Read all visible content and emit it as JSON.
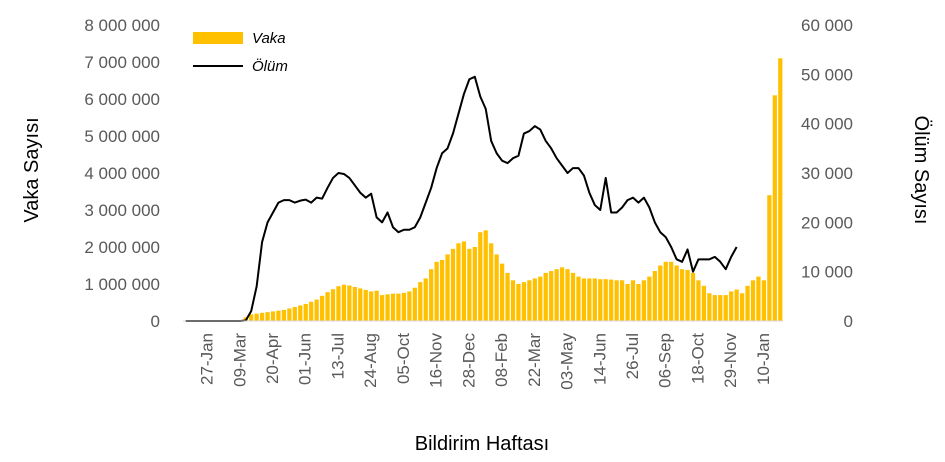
{
  "chart_data": {
    "type": "bar",
    "xlabel": "Bildirim Haftası",
    "ylabel": "Vaka Sayısı",
    "y2label": "Ölüm Sayısı",
    "ylim": [
      0,
      8000000
    ],
    "y2lim": [
      0,
      60000
    ],
    "yticks": [
      "0",
      "1 000 000",
      "2 000 000",
      "3 000 000",
      "4 000 000",
      "5 000 000",
      "6 000 000",
      "7 000 000",
      "8 000 000"
    ],
    "y2ticks": [
      "0",
      "10 000",
      "20 000",
      "30 000",
      "40 000",
      "50 000",
      "60 000"
    ],
    "xticks": [
      {
        "label": "27-Jan",
        "week": 4
      },
      {
        "label": "09-Mar",
        "week": 10
      },
      {
        "label": "20-Apr",
        "week": 16
      },
      {
        "label": "01-Jun",
        "week": 22
      },
      {
        "label": "13-Jul",
        "week": 28
      },
      {
        "label": "24-Aug",
        "week": 34
      },
      {
        "label": "05-Oct",
        "week": 40
      },
      {
        "label": "16-Nov",
        "week": 46
      },
      {
        "label": "28-Dec",
        "week": 52
      },
      {
        "label": "08-Feb",
        "week": 58
      },
      {
        "label": "22-Mar",
        "week": 64
      },
      {
        "label": "03-May",
        "week": 70
      },
      {
        "label": "14-Jun",
        "week": 76
      },
      {
        "label": "26-Jul",
        "week": 82
      },
      {
        "label": "06-Sep",
        "week": 88
      },
      {
        "label": "18-Oct",
        "week": 94
      },
      {
        "label": "29-Nov",
        "week": 100
      },
      {
        "label": "10-Jan",
        "week": 106
      }
    ],
    "grid": false,
    "legend_position": "top-left",
    "series": [
      {
        "name": "Vaka",
        "type": "bar",
        "axis": "left",
        "color": "#FFC000",
        "values": [
          0,
          0,
          0,
          0,
          0,
          0,
          0,
          0,
          0,
          0,
          20000,
          100000,
          180000,
          200000,
          220000,
          240000,
          260000,
          280000,
          300000,
          340000,
          380000,
          420000,
          460000,
          520000,
          580000,
          680000,
          780000,
          860000,
          940000,
          980000,
          960000,
          920000,
          880000,
          840000,
          800000,
          820000,
          700000,
          720000,
          740000,
          740000,
          760000,
          800000,
          900000,
          1050000,
          1150000,
          1400000,
          1600000,
          1650000,
          1800000,
          1950000,
          2100000,
          2150000,
          1950000,
          2000000,
          2400000,
          2450000,
          2100000,
          1800000,
          1550000,
          1300000,
          1100000,
          1000000,
          1050000,
          1100000,
          1150000,
          1200000,
          1300000,
          1350000,
          1400000,
          1450000,
          1400000,
          1300000,
          1200000,
          1150000,
          1150000,
          1150000,
          1130000,
          1130000,
          1120000,
          1100000,
          1100000,
          1000000,
          1100000,
          1000000,
          1100000,
          1200000,
          1350000,
          1500000,
          1600000,
          1600000,
          1500000,
          1400000,
          1380000,
          1300000,
          1100000,
          950000,
          750000,
          700000,
          700000,
          700000,
          800000,
          850000,
          750000,
          950000,
          1100000,
          1200000,
          1100000,
          3400000,
          6100000,
          7100000
        ]
      },
      {
        "name": "Ölüm",
        "type": "line",
        "axis": "right",
        "color": "#000000",
        "values": [
          0,
          0,
          0,
          0,
          0,
          0,
          0,
          0,
          0,
          0,
          0,
          100,
          2000,
          7000,
          16000,
          20000,
          22000,
          24000,
          24500,
          24500,
          24000,
          24400,
          24600,
          24000,
          25000,
          24800,
          27000,
          29000,
          30000,
          29800,
          29000,
          27500,
          26000,
          25000,
          25800,
          21000,
          20000,
          22000,
          19000,
          18000,
          18500,
          18500,
          19000,
          21000,
          24000,
          27000,
          31000,
          34000,
          35000,
          38000,
          42000,
          46000,
          49000,
          49500,
          45500,
          43000,
          36500,
          34000,
          32500,
          32000,
          33000,
          33500,
          38000,
          38500,
          39500,
          38800,
          36500,
          35000,
          33000,
          31500,
          30000,
          31000,
          31000,
          29500,
          26000,
          23500,
          22500,
          29000,
          22000,
          22000,
          23000,
          24500,
          25000,
          24000,
          25000,
          23000,
          20000,
          18000,
          17000,
          15000,
          12500,
          12000,
          14500,
          10000,
          12500,
          12500,
          12500,
          13000,
          12000,
          10500,
          13000,
          15000
        ]
      }
    ]
  }
}
